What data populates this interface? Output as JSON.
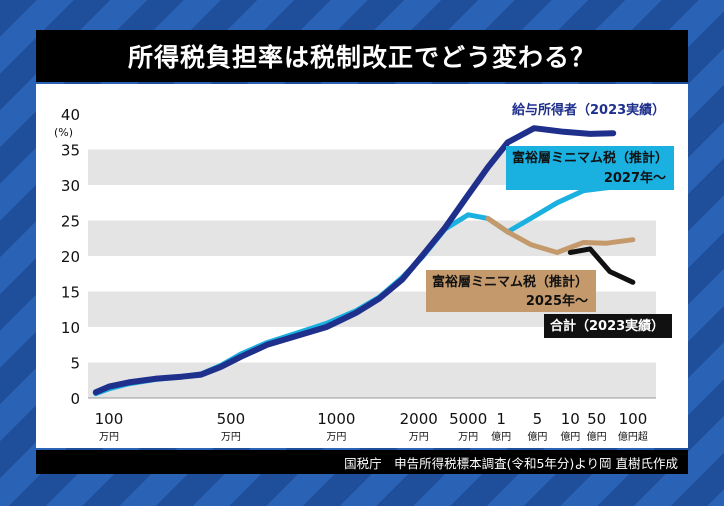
{
  "header": {
    "title": "所得税負担率は税制改正でどう変わる？"
  },
  "footer": {
    "source": "国税庁　申告所得税標本調査(令和5年分)より岡 直樹氏作成"
  },
  "chart_data": {
    "type": "line",
    "title": "所得税負担率は税制改正でどう変わる？",
    "y_unit": "(%)",
    "ylim": [
      0,
      40
    ],
    "y_ticks": [
      0,
      5,
      10,
      15,
      20,
      25,
      30,
      35,
      40
    ],
    "grid": "horizontal bands",
    "x_tick_labels": [
      {
        "key": "100万",
        "top": "100",
        "bottom": "万円"
      },
      {
        "key": "500万",
        "top": "500",
        "bottom": "万円"
      },
      {
        "key": "1000万",
        "top": "1000",
        "bottom": "万円"
      },
      {
        "key": "2000万",
        "top": "2000",
        "bottom": "万円"
      },
      {
        "key": "5000万",
        "top": "5000",
        "bottom": "万円"
      },
      {
        "key": "1億",
        "top": "1",
        "bottom": "億円"
      },
      {
        "key": "5億",
        "top": "5",
        "bottom": "億円"
      },
      {
        "key": "10億",
        "top": "10",
        "bottom": "億円"
      },
      {
        "key": "50億",
        "top": "50",
        "bottom": "億円"
      },
      {
        "key": "100億超",
        "top": "100",
        "bottom": "億円超"
      }
    ],
    "series": [
      {
        "name": "給与所得者 (2023実績)",
        "label_lines": [
          "給与所得者（2023実績）"
        ],
        "color": "#1e2f8c",
        "label_bg": "#ffffff",
        "label_fg": "#1e2f8c",
        "points": [
          [
            0.6,
            0.8
          ],
          [
            1,
            1.6
          ],
          [
            1.6,
            2.2
          ],
          [
            2.4,
            2.7
          ],
          [
            3.2,
            3.0
          ],
          [
            3.8,
            3.3
          ],
          [
            4.4,
            4.4
          ],
          [
            5,
            5.8
          ],
          [
            5.8,
            7.5
          ],
          [
            6.6,
            8.6
          ],
          [
            7.6,
            10.0
          ],
          [
            8.5,
            12.0
          ],
          [
            9.2,
            14.0
          ],
          [
            9.9,
            16.7
          ],
          [
            10.5,
            20.0
          ],
          [
            11.2,
            24.0
          ],
          [
            11.9,
            28.6
          ],
          [
            12.5,
            32.5
          ],
          [
            13.1,
            36.0
          ],
          [
            13.9,
            38.0
          ],
          [
            14.8,
            37.5
          ],
          [
            15.6,
            37.2
          ],
          [
            16.3,
            37.3
          ]
        ]
      },
      {
        "name": "富裕層ミニマム税 (推計) 2027年〜",
        "label_lines": [
          "富裕層ミニマム税（推計）",
          "2027年〜"
        ],
        "color": "#1ab0e0",
        "label_bg": "#1ab0e0",
        "label_fg": "#111111",
        "points": [
          [
            0.6,
            0.6
          ],
          [
            1,
            1.3
          ],
          [
            1.6,
            2.0
          ],
          [
            2.4,
            2.6
          ],
          [
            3.2,
            3.0
          ],
          [
            3.8,
            3.4
          ],
          [
            4.4,
            4.6
          ],
          [
            5,
            6.2
          ],
          [
            5.8,
            7.8
          ],
          [
            6.6,
            9.0
          ],
          [
            7.6,
            10.5
          ],
          [
            8.5,
            12.3
          ],
          [
            9.2,
            14.2
          ],
          [
            9.9,
            17.0
          ],
          [
            10.5,
            19.8
          ],
          [
            11.2,
            23.8
          ],
          [
            11.9,
            25.8
          ],
          [
            12.5,
            25.3
          ],
          [
            13.1,
            23.4
          ],
          [
            13.8,
            25.3
          ],
          [
            14.6,
            27.5
          ],
          [
            15.4,
            29.2
          ],
          [
            16.1,
            29.6
          ],
          [
            16.9,
            29.9
          ]
        ]
      },
      {
        "name": "富裕層ミニマム税 (推計) 2025年〜",
        "label_lines": [
          "富裕層ミニマム税（推計）",
          "2025年〜"
        ],
        "color": "#c49a6c",
        "label_bg": "#c49a6c",
        "label_fg": "#111111",
        "points": [
          [
            12.5,
            25.3
          ],
          [
            13.1,
            23.4
          ],
          [
            13.8,
            21.6
          ],
          [
            14.6,
            20.5
          ],
          [
            15.4,
            21.9
          ],
          [
            16.1,
            21.8
          ],
          [
            16.9,
            22.3
          ]
        ]
      },
      {
        "name": "合計 (2023実績)",
        "label_lines": [
          "合計（2023実績）"
        ],
        "color": "#111111",
        "label_bg": "#111111",
        "label_fg": "#ffffff",
        "points": [
          [
            15.0,
            20.5
          ],
          [
            15.6,
            21.0
          ],
          [
            16.2,
            17.8
          ],
          [
            16.9,
            16.3
          ]
        ]
      }
    ]
  }
}
